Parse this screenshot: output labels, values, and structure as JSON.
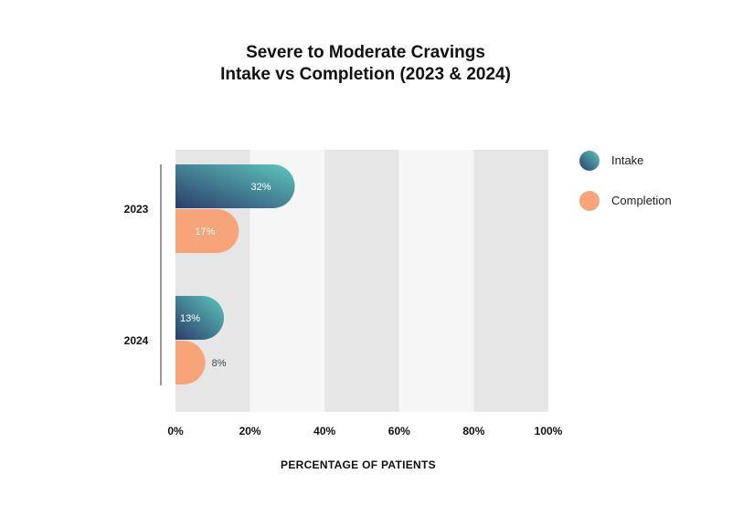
{
  "chart_data": {
    "type": "bar",
    "orientation": "horizontal",
    "title": [
      "Severe to Moderate Cravings",
      "Intake vs Completion (2023 & 2024)"
    ],
    "categories": [
      "2023",
      "2024"
    ],
    "series": [
      {
        "name": "Intake",
        "values": [
          32,
          13
        ],
        "labels": [
          "32%",
          "13%"
        ],
        "color_start": "#2b3d6b",
        "color_end": "#5ec7be"
      },
      {
        "name": "Completion",
        "values": [
          17,
          8
        ],
        "labels": [
          "17%",
          "8%"
        ],
        "color": "#f8a47a"
      }
    ],
    "xlabel": "PERCENTAGE OF PATIENTS",
    "xlim": [
      0,
      100
    ],
    "xticks": [
      0,
      20,
      40,
      60,
      80,
      100
    ],
    "xtick_labels": [
      "0%",
      "20%",
      "40%",
      "60%",
      "80%",
      "100%"
    ],
    "grid": "alternating vertical bands",
    "band_colors": [
      "#e6e6e6",
      "#f6f6f6"
    ],
    "legend": "right"
  }
}
